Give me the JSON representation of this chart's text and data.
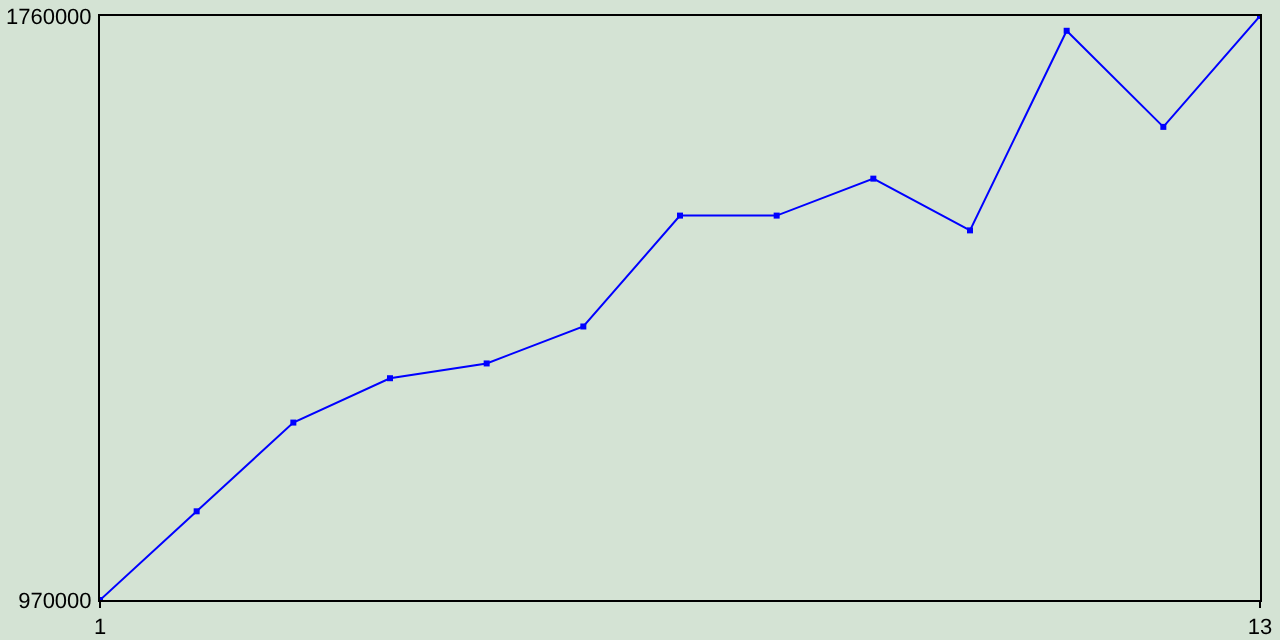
{
  "chart_data": {
    "type": "line",
    "x": [
      1,
      2,
      3,
      4,
      5,
      6,
      7,
      8,
      9,
      10,
      11,
      12,
      13
    ],
    "series": [
      {
        "color": "#0000ff",
        "values": [
          970000,
          1090000,
          1210000,
          1270000,
          1290000,
          1340000,
          1490000,
          1490000,
          1540000,
          1470000,
          1740000,
          1610000,
          1760000
        ]
      }
    ],
    "xlim": [
      1,
      13
    ],
    "xticks": [
      1,
      13
    ],
    "ylim": [
      970000,
      1760000
    ],
    "yticks": [
      970000,
      1760000
    ],
    "marker": "square",
    "line_style": "solid"
  }
}
